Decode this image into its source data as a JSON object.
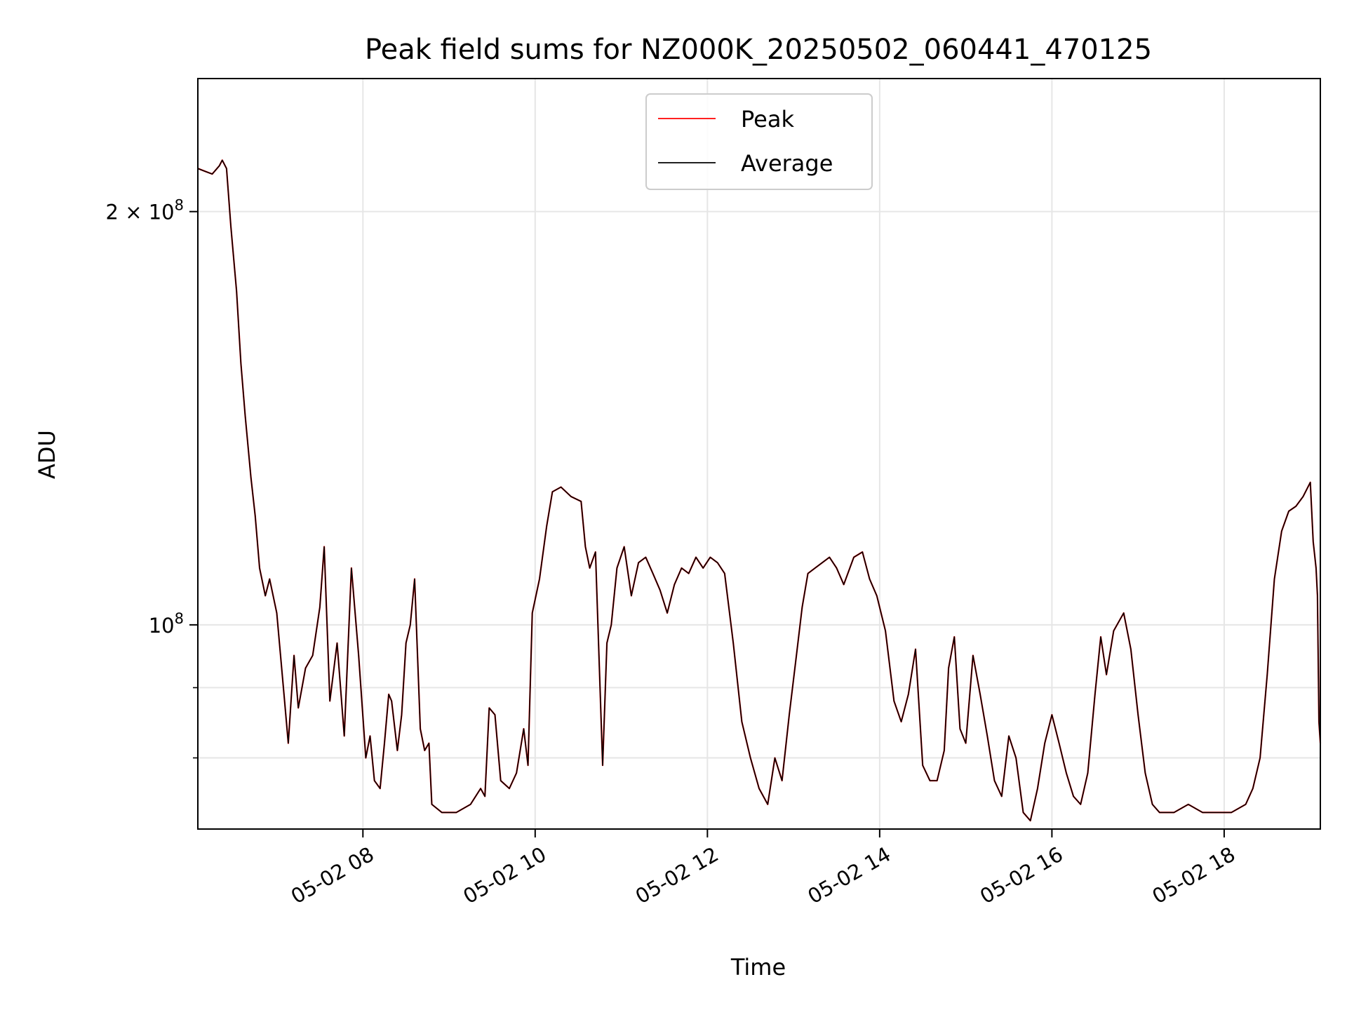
{
  "chart_data": {
    "type": "line",
    "title": "Peak field sums for NZ000K_20250502_060441_470125",
    "xlabel": "Time",
    "ylabel": "ADU",
    "y_scale": "log",
    "ylim": [
      71000000,
      250000000
    ],
    "x_range": [
      "05-02 06:05",
      "05-02 19:07"
    ],
    "grid": true,
    "legend_position": "top-center",
    "x_ticks": [
      "05-02 08",
      "05-02 10",
      "05-02 12",
      "05-02 14",
      "05-02 16",
      "05-02 18"
    ],
    "y_ticks": [
      {
        "value": 100000000,
        "base": "10",
        "exp": "8",
        "mult": ""
      },
      {
        "value": 200000000,
        "base": "10",
        "exp": "8",
        "mult": "2 × "
      }
    ],
    "series": [
      {
        "name": "Peak",
        "color": "#ff0000",
        "points": [
          [
            "05-02 06:05",
            215000000.0
          ],
          [
            "05-02 06:10",
            214000000.0
          ],
          [
            "05-02 06:15",
            213000000.0
          ],
          [
            "05-02 06:20",
            216000000.0
          ],
          [
            "05-02 06:22",
            218000000.0
          ],
          [
            "05-02 06:25",
            215000000.0
          ],
          [
            "05-02 06:28",
            195000000.0
          ],
          [
            "05-02 06:32",
            175000000.0
          ],
          [
            "05-02 06:35",
            155000000.0
          ],
          [
            "05-02 06:38",
            142000000.0
          ],
          [
            "05-02 06:42",
            128000000.0
          ],
          [
            "05-02 06:45",
            120000000.0
          ],
          [
            "05-02 06:48",
            110000000.0
          ],
          [
            "05-02 06:52",
            105000000.0
          ],
          [
            "05-02 06:55",
            108000000.0
          ],
          [
            "05-02 07:00",
            102000000.0
          ],
          [
            "05-02 07:05",
            89000000.0
          ],
          [
            "05-02 07:08",
            82000000.0
          ],
          [
            "05-02 07:12",
            95000000.0
          ],
          [
            "05-02 07:15",
            87000000.0
          ],
          [
            "05-02 07:20",
            93000000.0
          ],
          [
            "05-02 07:25",
            95000000.0
          ],
          [
            "05-02 07:30",
            103000000.0
          ],
          [
            "05-02 07:33",
            114000000.0
          ],
          [
            "05-02 07:37",
            88000000.0
          ],
          [
            "05-02 07:42",
            97000000.0
          ],
          [
            "05-02 07:47",
            83000000.0
          ],
          [
            "05-02 07:52",
            110000000.0
          ],
          [
            "05-02 07:57",
            95000000.0
          ],
          [
            "05-02 08:02",
            80000000.0
          ],
          [
            "05-02 08:05",
            83000000.0
          ],
          [
            "05-02 08:08",
            77000000.0
          ],
          [
            "05-02 08:12",
            76000000.0
          ],
          [
            "05-02 08:15",
            82000000.0
          ],
          [
            "05-02 08:18",
            89000000.0
          ],
          [
            "05-02 08:20",
            88000000.0
          ],
          [
            "05-02 08:24",
            81000000.0
          ],
          [
            "05-02 08:27",
            86000000.0
          ],
          [
            "05-02 08:30",
            97000000.0
          ],
          [
            "05-02 08:33",
            100000000.0
          ],
          [
            "05-02 08:36",
            108000000.0
          ],
          [
            "05-02 08:40",
            84000000.0
          ],
          [
            "05-02 08:43",
            81000000.0
          ],
          [
            "05-02 08:46",
            82000000.0
          ],
          [
            "05-02 08:48",
            74000000.0
          ],
          [
            "05-02 08:55",
            73000000.0
          ],
          [
            "05-02 09:05",
            73000000.0
          ],
          [
            "05-02 09:15",
            74000000.0
          ],
          [
            "05-02 09:22",
            76000000.0
          ],
          [
            "05-02 09:25",
            75000000.0
          ],
          [
            "05-02 09:28",
            87000000.0
          ],
          [
            "05-02 09:32",
            86000000.0
          ],
          [
            "05-02 09:36",
            77000000.0
          ],
          [
            "05-02 09:42",
            76000000.0
          ],
          [
            "05-02 09:47",
            78000000.0
          ],
          [
            "05-02 09:52",
            84000000.0
          ],
          [
            "05-02 09:55",
            79000000.0
          ],
          [
            "05-02 09:58",
            102000000.0
          ],
          [
            "05-02 10:03",
            108000000.0
          ],
          [
            "05-02 10:08",
            118000000.0
          ],
          [
            "05-02 10:12",
            125000000.0
          ],
          [
            "05-02 10:18",
            126000000.0
          ],
          [
            "05-02 10:25",
            124000000.0
          ],
          [
            "05-02 10:32",
            123000000.0
          ],
          [
            "05-02 10:35",
            114000000.0
          ],
          [
            "05-02 10:38",
            110000000.0
          ],
          [
            "05-02 10:42",
            113000000.0
          ],
          [
            "05-02 10:47",
            79000000.0
          ],
          [
            "05-02 10:50",
            97000000.0
          ],
          [
            "05-02 10:53",
            100000000.0
          ],
          [
            "05-02 10:57",
            110000000.0
          ],
          [
            "05-02 11:02",
            114000000.0
          ],
          [
            "05-02 11:07",
            105000000.0
          ],
          [
            "05-02 11:12",
            111000000.0
          ],
          [
            "05-02 11:17",
            112000000.0
          ],
          [
            "05-02 11:22",
            109000000.0
          ],
          [
            "05-02 11:27",
            106000000.0
          ],
          [
            "05-02 11:32",
            102000000.0
          ],
          [
            "05-02 11:37",
            107000000.0
          ],
          [
            "05-02 11:42",
            110000000.0
          ],
          [
            "05-02 11:47",
            109000000.0
          ],
          [
            "05-02 11:52",
            112000000.0
          ],
          [
            "05-02 11:57",
            110000000.0
          ],
          [
            "05-02 12:02",
            112000000.0
          ],
          [
            "05-02 12:07",
            111000000.0
          ],
          [
            "05-02 12:12",
            109000000.0
          ],
          [
            "05-02 12:18",
            97000000.0
          ],
          [
            "05-02 12:24",
            85000000.0
          ],
          [
            "05-02 12:30",
            80000000.0
          ],
          [
            "05-02 12:36",
            76000000.0
          ],
          [
            "05-02 12:42",
            74000000.0
          ],
          [
            "05-02 12:47",
            80000000.0
          ],
          [
            "05-02 12:52",
            77000000.0
          ],
          [
            "05-02 12:57",
            86000000.0
          ],
          [
            "05-02 13:02",
            95000000.0
          ],
          [
            "05-02 13:06",
            103000000.0
          ],
          [
            "05-02 13:10",
            109000000.0
          ],
          [
            "05-02 13:15",
            110000000.0
          ],
          [
            "05-02 13:20",
            111000000.0
          ],
          [
            "05-02 13:25",
            112000000.0
          ],
          [
            "05-02 13:30",
            110000000.0
          ],
          [
            "05-02 13:35",
            107000000.0
          ],
          [
            "05-02 13:42",
            112000000.0
          ],
          [
            "05-02 13:48",
            113000000.0
          ],
          [
            "05-02 13:53",
            108000000.0
          ],
          [
            "05-02 13:58",
            105000000.0
          ],
          [
            "05-02 14:04",
            99000000.0
          ],
          [
            "05-02 14:10",
            88000000.0
          ],
          [
            "05-02 14:15",
            85000000.0
          ],
          [
            "05-02 14:20",
            89000000.0
          ],
          [
            "05-02 14:25",
            96000000.0
          ],
          [
            "05-02 14:30",
            79000000.0
          ],
          [
            "05-02 14:35",
            77000000.0
          ],
          [
            "05-02 14:40",
            77000000.0
          ],
          [
            "05-02 14:45",
            81000000.0
          ],
          [
            "05-02 14:48",
            93000000.0
          ],
          [
            "05-02 14:52",
            98000000.0
          ],
          [
            "05-02 14:56",
            84000000.0
          ],
          [
            "05-02 15:00",
            82000000.0
          ],
          [
            "05-02 15:05",
            95000000.0
          ],
          [
            "05-02 15:10",
            89000000.0
          ],
          [
            "05-02 15:15",
            83000000.0
          ],
          [
            "05-02 15:20",
            77000000.0
          ],
          [
            "05-02 15:25",
            75000000.0
          ],
          [
            "05-02 15:30",
            83000000.0
          ],
          [
            "05-02 15:35",
            80000000.0
          ],
          [
            "05-02 15:40",
            73000000.0
          ],
          [
            "05-02 15:45",
            72000000.0
          ],
          [
            "05-02 15:50",
            76000000.0
          ],
          [
            "05-02 15:55",
            82000000.0
          ],
          [
            "05-02 16:00",
            86000000.0
          ],
          [
            "05-02 16:05",
            82000000.0
          ],
          [
            "05-02 16:10",
            78000000.0
          ],
          [
            "05-02 16:15",
            75000000.0
          ],
          [
            "05-02 16:20",
            74000000.0
          ],
          [
            "05-02 16:25",
            78000000.0
          ],
          [
            "05-02 16:30",
            89000000.0
          ],
          [
            "05-02 16:34",
            98000000.0
          ],
          [
            "05-02 16:38",
            92000000.0
          ],
          [
            "05-02 16:43",
            99000000.0
          ],
          [
            "05-02 16:50",
            102000000.0
          ],
          [
            "05-02 16:55",
            96000000.0
          ],
          [
            "05-02 17:00",
            86000000.0
          ],
          [
            "05-02 17:05",
            78000000.0
          ],
          [
            "05-02 17:10",
            74000000.0
          ],
          [
            "05-02 17:15",
            73000000.0
          ],
          [
            "05-02 17:25",
            73000000.0
          ],
          [
            "05-02 17:35",
            74000000.0
          ],
          [
            "05-02 17:45",
            73000000.0
          ],
          [
            "05-02 17:55",
            73000000.0
          ],
          [
            "05-02 18:05",
            73000000.0
          ],
          [
            "05-02 18:15",
            74000000.0
          ],
          [
            "05-02 18:20",
            76000000.0
          ],
          [
            "05-02 18:25",
            80000000.0
          ],
          [
            "05-02 18:30",
            92000000.0
          ],
          [
            "05-02 18:35",
            108000000.0
          ],
          [
            "05-02 18:40",
            117000000.0
          ],
          [
            "05-02 18:45",
            121000000.0
          ],
          [
            "05-02 18:50",
            122000000.0
          ],
          [
            "05-02 18:55",
            124000000.0
          ],
          [
            "05-02 19:00",
            127000000.0
          ],
          [
            "05-02 19:02",
            115000000.0
          ],
          [
            "05-02 19:04",
            110000000.0
          ],
          [
            "05-02 19:05",
            105000000.0
          ],
          [
            "05-02 19:06",
            85000000.0
          ],
          [
            "05-02 19:07",
            82000000.0
          ]
        ]
      },
      {
        "name": "Average",
        "color": "#000000",
        "points": []
      }
    ]
  }
}
